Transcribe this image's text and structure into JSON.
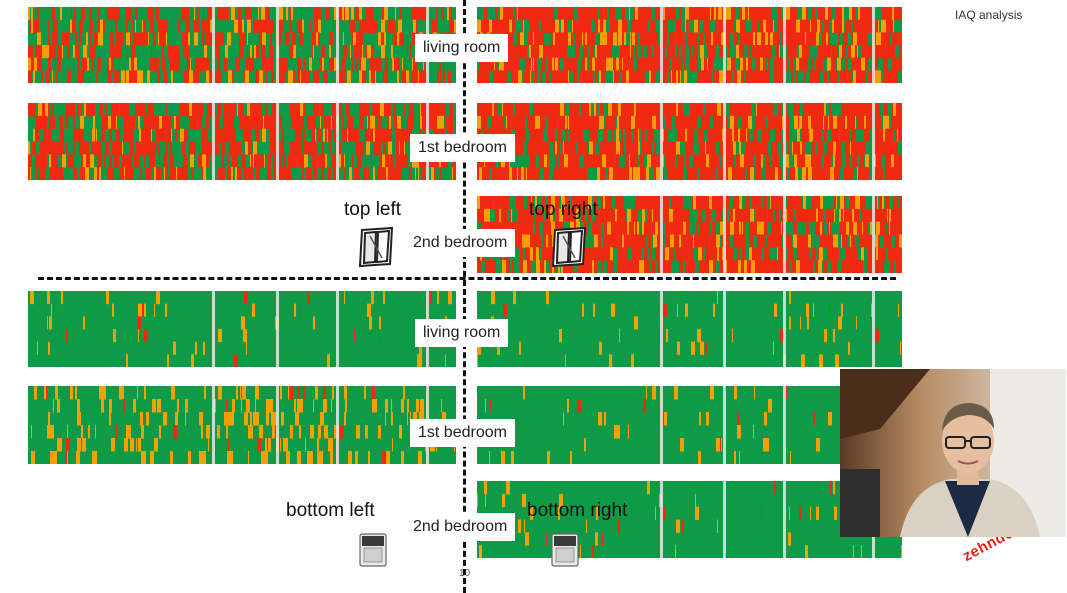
{
  "slide": {
    "header": "IAQ analysis",
    "page_number": "10",
    "logo": "zehnder"
  },
  "quadrants": {
    "top_left": "top left",
    "top_right": "top right",
    "bottom_left": "bottom left",
    "bottom_right": "bottom right"
  },
  "rooms": {
    "top": [
      "living room",
      "1st bedroom",
      "2nd bedroom"
    ],
    "bottom": [
      "living room",
      "1st bedroom",
      "2nd bedroom"
    ]
  },
  "icons": {
    "top_left": "window-icon",
    "top_right": "window-icon",
    "bottom_left": "air-purifier-icon",
    "bottom_right": "air-purifier-icon"
  },
  "colors": {
    "good": "#0f9a48",
    "moderate": "#f5a000",
    "poor": "#f02a10"
  },
  "strip_profiles": {
    "tl_living": "mixed-green",
    "tl_bed1": "mixed-red",
    "tr_living": "mostly-red",
    "tr_bed1": "mostly-red",
    "tr_bed2": "mostly-red",
    "bl_living": "mostly-green",
    "bl_bed1": "green-orange",
    "br_living": "mostly-green",
    "br_bed1": "mostly-green",
    "br_bed2": "mostly-green"
  }
}
